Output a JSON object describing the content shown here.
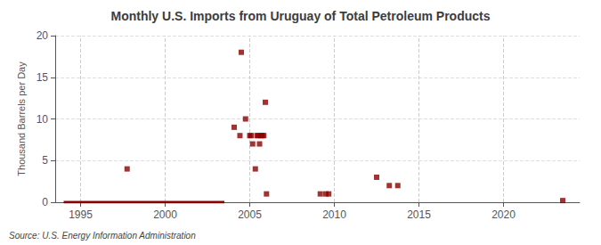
{
  "chart_data": {
    "type": "scatter",
    "title": "Monthly U.S. Imports from Uruguay of Total Petroleum Products",
    "ylabel": "Thousand Barrels per Day",
    "annotation": "Source: U.S. Energy Information Administration",
    "xlim": [
      1993.5,
      2024.5
    ],
    "ylim": [
      0,
      20
    ],
    "xticks": [
      1995,
      2000,
      2005,
      2010,
      2015,
      2020
    ],
    "yticks": [
      0,
      5,
      10,
      15,
      20
    ],
    "grid": true,
    "series": [
      {
        "type": "scatter",
        "color": "#8b0000",
        "marker": "square",
        "x": [
          1997.75,
          2004.08,
          2004.42,
          2004.5,
          2004.75,
          2005.0,
          2005.08,
          2005.17,
          2005.33,
          2005.42,
          2005.5,
          2005.58,
          2005.67,
          2005.75,
          2005.83,
          2005.92,
          2005.99,
          2009.17,
          2009.5,
          2009.67,
          2012.5,
          2013.25,
          2013.75,
          2023.5
        ],
        "values": [
          4.0,
          9.0,
          8.0,
          18.0,
          10.0,
          8.0,
          8.0,
          7.0,
          4.0,
          8.0,
          8.0,
          7.0,
          8.0,
          8.0,
          8.0,
          12.0,
          1.0,
          1.0,
          1.0,
          1.0,
          3.0,
          2.0,
          2.0,
          0.2
        ]
      },
      {
        "type": "line",
        "color": "#8b0000",
        "line_style": "solid",
        "x": [
          1994.0,
          2003.5
        ],
        "values": [
          0,
          0
        ]
      }
    ]
  }
}
